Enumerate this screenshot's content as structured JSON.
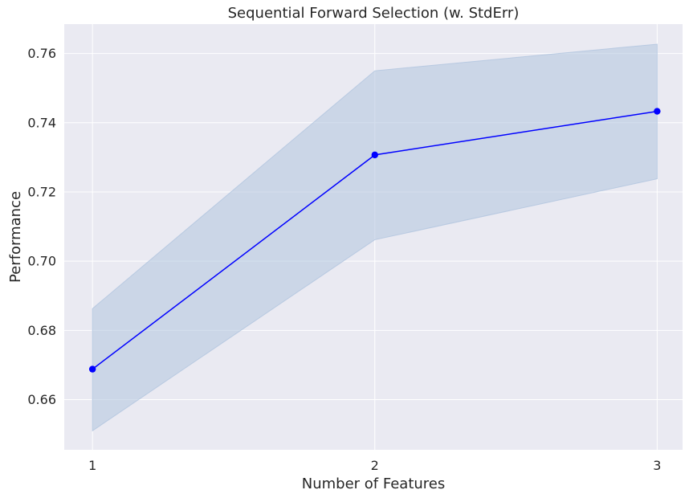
{
  "chart_data": {
    "type": "line",
    "title": "Sequential Forward Selection (w. StdErr)",
    "xlabel": "Number of Features",
    "ylabel": "Performance",
    "x": [
      1,
      2,
      3
    ],
    "xticks": [
      "1",
      "2",
      "3"
    ],
    "xlim": [
      0.9,
      3.09
    ],
    "yticks": [
      "0.66",
      "0.68",
      "0.70",
      "0.72",
      "0.74",
      "0.76"
    ],
    "ylim": [
      0.6455,
      0.7685
    ],
    "grid": true,
    "series": [
      {
        "values": [
          0.6688,
          0.7307,
          0.7433
        ],
        "lower": [
          0.651,
          0.7062,
          0.7238
        ],
        "upper": [
          0.6863,
          0.755,
          0.7627
        ],
        "color": "#0000ff",
        "band_color": "#b0c4de"
      }
    ],
    "background": "#eaeaf2"
  }
}
